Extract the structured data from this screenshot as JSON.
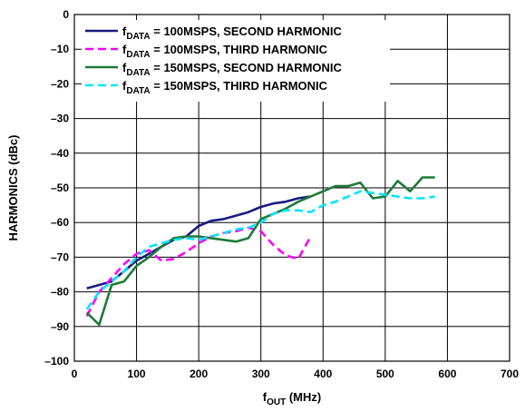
{
  "chart_data": {
    "type": "line",
    "xlabel": {
      "base": "f",
      "sub": "OUT",
      "rest": " (MHz)"
    },
    "ylabel": "HARMONICS (dBc)",
    "xlim": [
      0,
      700
    ],
    "ylim": [
      -100,
      0
    ],
    "x_ticks": [
      0,
      100,
      200,
      300,
      400,
      500,
      600,
      700
    ],
    "y_ticks": [
      0,
      -10,
      -20,
      -30,
      -40,
      -50,
      -60,
      -70,
      -80,
      -90,
      -100
    ],
    "x_tick_labels": [
      "0",
      "100",
      "200",
      "300",
      "400",
      "500",
      "600",
      "700"
    ],
    "y_tick_labels": [
      "0",
      "–10",
      "–20",
      "–30",
      "–40",
      "–50",
      "–60",
      "–70",
      "–80",
      "–90",
      "–100"
    ],
    "grid": true,
    "legend_position": "top-center",
    "series": [
      {
        "name": "fDATA = 100MSPS, SECOND HARMONIC",
        "legend": {
          "base": "f",
          "sub": "DATA",
          "rest": " = 100MSPS, SECOND HARMONIC"
        },
        "color": "#1a1a80",
        "dash": "solid",
        "x": [
          20,
          40,
          60,
          80,
          100,
          120,
          140,
          160,
          180,
          200,
          220,
          240,
          260,
          280,
          300,
          320,
          340,
          360,
          380
        ],
        "y": [
          -79,
          -78,
          -77,
          -74,
          -71,
          -69,
          -67,
          -65,
          -64,
          -61,
          -59.5,
          -59,
          -58,
          -57,
          -55.5,
          -54.5,
          -54,
          -53,
          -52.5
        ]
      },
      {
        "name": "fDATA = 100MSPS, THIRD HARMONIC",
        "legend": {
          "base": "f",
          "sub": "DATA",
          "rest": " = 100MSPS, THIRD HARMONIC"
        },
        "color": "#ff00ff",
        "dash": "dashed",
        "x": [
          20,
          40,
          60,
          80,
          100,
          120,
          140,
          160,
          180,
          200,
          220,
          240,
          260,
          280,
          300,
          320,
          340,
          360,
          380
        ],
        "y": [
          -87,
          -80,
          -76,
          -72,
          -69,
          -68,
          -71,
          -70.5,
          -68.5,
          -66,
          -64,
          -63,
          -62.5,
          -61.5,
          -62.5,
          -66.5,
          -69.5,
          -70.5,
          -64
        ]
      },
      {
        "name": "fDATA = 150MSPS, SECOND HARMONIC",
        "legend": {
          "base": "f",
          "sub": "DATA",
          "rest": " = 150MSPS, SECOND HARMONIC"
        },
        "color": "#1e7a37",
        "dash": "solid",
        "x": [
          20,
          40,
          60,
          80,
          100,
          120,
          140,
          160,
          180,
          200,
          220,
          240,
          260,
          280,
          300,
          320,
          340,
          360,
          380,
          400,
          420,
          440,
          460,
          480,
          500,
          520,
          540,
          560,
          580
        ],
        "y": [
          -86,
          -89.5,
          -78,
          -77,
          -72.5,
          -70,
          -67,
          -64.5,
          -64,
          -64,
          -64.5,
          -65,
          -65.5,
          -64.5,
          -59,
          -57.5,
          -56,
          -54,
          -52.5,
          -51,
          -49.5,
          -49.5,
          -48.5,
          -53,
          -52.5,
          -48,
          -51,
          -47,
          -47
        ]
      },
      {
        "name": "fDATA = 150MSPS, THIRD HARMONIC",
        "legend": {
          "base": "f",
          "sub": "DATA",
          "rest": " = 150MSPS, THIRD HARMONIC"
        },
        "color": "#00e5ff",
        "dash": "dashed",
        "x": [
          20,
          40,
          60,
          80,
          100,
          120,
          140,
          160,
          180,
          200,
          220,
          240,
          260,
          280,
          300,
          320,
          340,
          360,
          380,
          400,
          420,
          440,
          460,
          480,
          500,
          520,
          540,
          560,
          580
        ],
        "y": [
          -85,
          -80,
          -77,
          -74,
          -70,
          -67,
          -66,
          -65,
          -64.5,
          -65,
          -64,
          -63,
          -62,
          -61.5,
          -60,
          -57.5,
          -56.5,
          -56.5,
          -57,
          -55,
          -54,
          -52.5,
          -51,
          -51.5,
          -52,
          -52.5,
          -53,
          -53,
          -52.5
        ]
      }
    ]
  }
}
